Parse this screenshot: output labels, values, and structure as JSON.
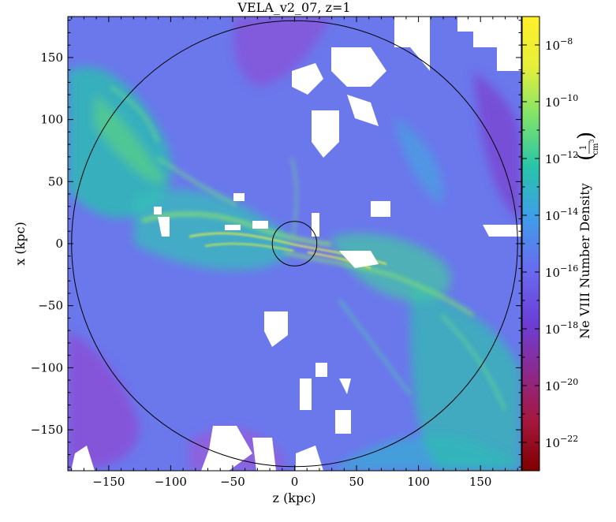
{
  "chart_data": {
    "type": "heatmap",
    "title": "VELA_v2_07, z=1",
    "xlabel": "z  (kpc)",
    "ylabel": "x  (kpc)",
    "xlim": [
      -183,
      183
    ],
    "ylim": [
      -183,
      183
    ],
    "x_ticks": [
      -150,
      -100,
      -50,
      0,
      50,
      100,
      150
    ],
    "y_ticks": [
      -150,
      -100,
      -50,
      0,
      50,
      100,
      150
    ],
    "x_tick_labels": [
      "−150",
      "−100",
      "−50",
      "0",
      "50",
      "100",
      "150"
    ],
    "y_tick_labels": [
      "−150",
      "−100",
      "−50",
      "0",
      "50",
      "100",
      "150"
    ],
    "colorbar": {
      "label": "Ne VIII Number Density",
      "unit_numerator": "1",
      "unit_denominator": "cm",
      "unit_denominator_exp": "3",
      "scale": "log",
      "range": [
        1e-23,
        1e-07
      ],
      "tick_exponents": [
        -8,
        -10,
        -12,
        -14,
        -16,
        -18,
        -20,
        -22
      ],
      "tick_base": "10",
      "colormap": [
        "#7f0000",
        "#a6173e",
        "#8b2a8f",
        "#6b3fd9",
        "#6a6af0",
        "#3e9ee8",
        "#27c4a8",
        "#7ee36a",
        "#e6ef3a",
        "#ffef29"
      ]
    },
    "circles_kpc": [
      180,
      18
    ]
  }
}
